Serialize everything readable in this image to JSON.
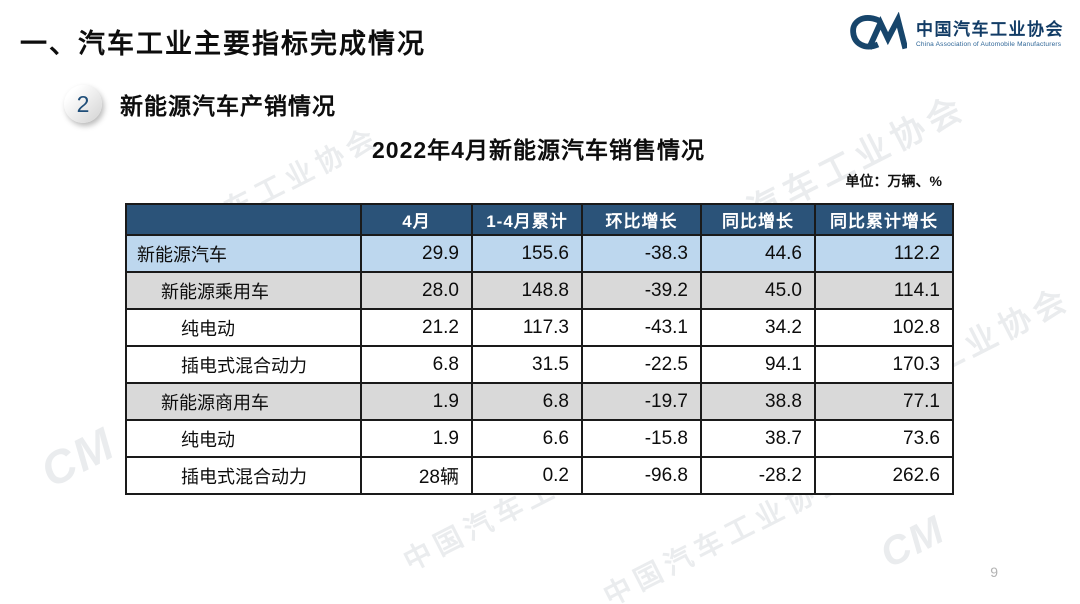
{
  "slide": {
    "main_title": "一、汽车工业主要指标完成情况",
    "section_badge": "2",
    "section_title": "新能源汽车产销情况",
    "table_title": "2022年4月新能源汽车销售情况",
    "unit_label": "单位：万辆、%",
    "page_number": "9"
  },
  "logo": {
    "glyph": "CM",
    "org_name_cn": "中国汽车工业协会",
    "org_name_en": "China Association of Automobile Manufacturers"
  },
  "watermark_text": "中国汽车工业协会",
  "colors": {
    "header_bg": "#2B5379",
    "row_highlight_blue": "#BDD7EE",
    "row_highlight_gray": "#D9D9D9",
    "table_border": "#1A1A1A",
    "logo_blue": "#17456B"
  },
  "chart_data": {
    "type": "table",
    "title": "2022年4月新能源汽车销售情况",
    "unit": "万辆、%",
    "columns": [
      "",
      "4月",
      "1-4月累计",
      "环比增长",
      "同比增长",
      "同比累计增长"
    ],
    "rows": [
      {
        "label": "新能源汽车",
        "indent": 0,
        "highlight": "blue",
        "values": [
          "29.9",
          "155.6",
          "-38.3",
          "44.6",
          "112.2"
        ]
      },
      {
        "label": "新能源乘用车",
        "indent": 1,
        "highlight": "gray",
        "values": [
          "28.0",
          "148.8",
          "-39.2",
          "45.0",
          "114.1"
        ]
      },
      {
        "label": "纯电动",
        "indent": 2,
        "highlight": "none",
        "values": [
          "21.2",
          "117.3",
          "-43.1",
          "34.2",
          "102.8"
        ]
      },
      {
        "label": "插电式混合动力",
        "indent": 2,
        "highlight": "none",
        "values": [
          "6.8",
          "31.5",
          "-22.5",
          "94.1",
          "170.3"
        ]
      },
      {
        "label": "新能源商用车",
        "indent": 1,
        "highlight": "gray",
        "values": [
          "1.9",
          "6.8",
          "-19.7",
          "38.8",
          "77.1"
        ]
      },
      {
        "label": "纯电动",
        "indent": 2,
        "highlight": "none",
        "values": [
          "1.9",
          "6.6",
          "-15.8",
          "38.7",
          "73.6"
        ]
      },
      {
        "label": "插电式混合动力",
        "indent": 2,
        "highlight": "none",
        "values": [
          "28辆",
          "0.2",
          "-96.8",
          "-28.2",
          "262.6"
        ]
      }
    ]
  }
}
